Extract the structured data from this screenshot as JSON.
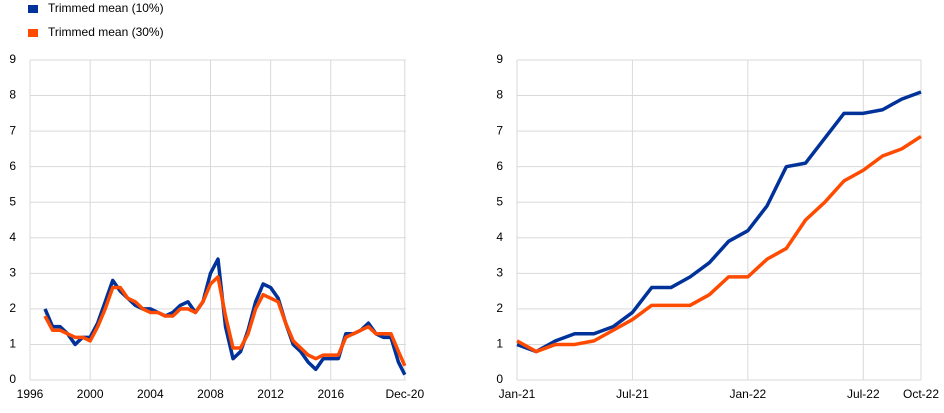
{
  "chart_data": [
    {
      "type": "line",
      "x": [
        1997,
        1997.5,
        1998,
        1998.5,
        1999,
        1999.5,
        2000,
        2000.5,
        2001,
        2001.5,
        2002,
        2002.5,
        2003,
        2003.5,
        2004,
        2004.5,
        2005,
        2005.5,
        2006,
        2006.5,
        2007,
        2007.5,
        2008,
        2008.5,
        2009,
        2009.5,
        2010,
        2010.5,
        2011,
        2011.5,
        2012,
        2012.5,
        2013,
        2013.5,
        2014,
        2014.5,
        2015,
        2015.5,
        2016,
        2016.5,
        2017,
        2017.5,
        2018,
        2018.5,
        2019,
        2019.5,
        2020,
        2020.5,
        2020.92
      ],
      "series": [
        {
          "name": "Trimmed mean (10%)",
          "color": "#003299",
          "values": [
            2.0,
            1.5,
            1.5,
            1.3,
            1.0,
            1.2,
            1.2,
            1.6,
            2.2,
            2.8,
            2.5,
            2.3,
            2.1,
            2.0,
            2.0,
            1.9,
            1.8,
            1.9,
            2.1,
            2.2,
            1.9,
            2.2,
            3.0,
            3.4,
            1.5,
            0.6,
            0.8,
            1.4,
            2.2,
            2.7,
            2.6,
            2.3,
            1.6,
            1.0,
            0.8,
            0.5,
            0.3,
            0.6,
            0.6,
            0.6,
            1.3,
            1.3,
            1.4,
            1.6,
            1.3,
            1.2,
            1.2,
            0.5,
            0.15
          ]
        },
        {
          "name": "Trimmed mean (30%)",
          "color": "#ff4b00",
          "values": [
            1.8,
            1.4,
            1.4,
            1.3,
            1.2,
            1.2,
            1.1,
            1.5,
            2.0,
            2.6,
            2.6,
            2.3,
            2.2,
            2.0,
            1.9,
            1.9,
            1.8,
            1.8,
            2.0,
            2.0,
            1.9,
            2.2,
            2.7,
            2.9,
            1.8,
            0.9,
            0.9,
            1.3,
            2.0,
            2.4,
            2.3,
            2.2,
            1.6,
            1.1,
            0.9,
            0.7,
            0.6,
            0.7,
            0.7,
            0.7,
            1.2,
            1.3,
            1.4,
            1.5,
            1.3,
            1.3,
            1.3,
            0.8,
            0.4
          ]
        }
      ],
      "xlim": [
        1996,
        2021
      ],
      "xticks": [
        1996,
        2000,
        2004,
        2008,
        2012,
        2016,
        {
          "value": 2020.92,
          "label": "Dec-20"
        }
      ],
      "ylim": [
        0,
        9
      ],
      "yticks": [
        0,
        1,
        2,
        3,
        4,
        5,
        6,
        7,
        8,
        9
      ],
      "grid": true
    },
    {
      "type": "line",
      "categories": [
        "Jan-21",
        null,
        null,
        null,
        null,
        null,
        "Jul-21",
        null,
        null,
        null,
        null,
        null,
        "Jan-22",
        null,
        null,
        null,
        null,
        null,
        "Jul-22",
        null,
        null,
        "Oct-22"
      ],
      "series": [
        {
          "color": "#003299",
          "values": [
            1.0,
            0.8,
            1.1,
            1.3,
            1.3,
            1.5,
            1.9,
            2.6,
            2.6,
            2.9,
            3.3,
            3.9,
            4.2,
            4.9,
            6.0,
            6.1,
            6.8,
            7.5,
            7.5,
            7.6,
            7.9,
            8.1
          ]
        },
        {
          "color": "#ff4b00",
          "values": [
            1.1,
            0.8,
            1.0,
            1.0,
            1.1,
            1.4,
            1.7,
            2.1,
            2.1,
            2.1,
            2.4,
            2.9,
            2.9,
            3.4,
            3.7,
            4.5,
            5.0,
            5.6,
            5.9,
            6.3,
            6.5,
            6.85
          ]
        }
      ],
      "ylim": [
        0,
        9
      ],
      "yticks": [
        0,
        1,
        2,
        3,
        4,
        5,
        6,
        7,
        8,
        9
      ],
      "grid": true
    }
  ]
}
